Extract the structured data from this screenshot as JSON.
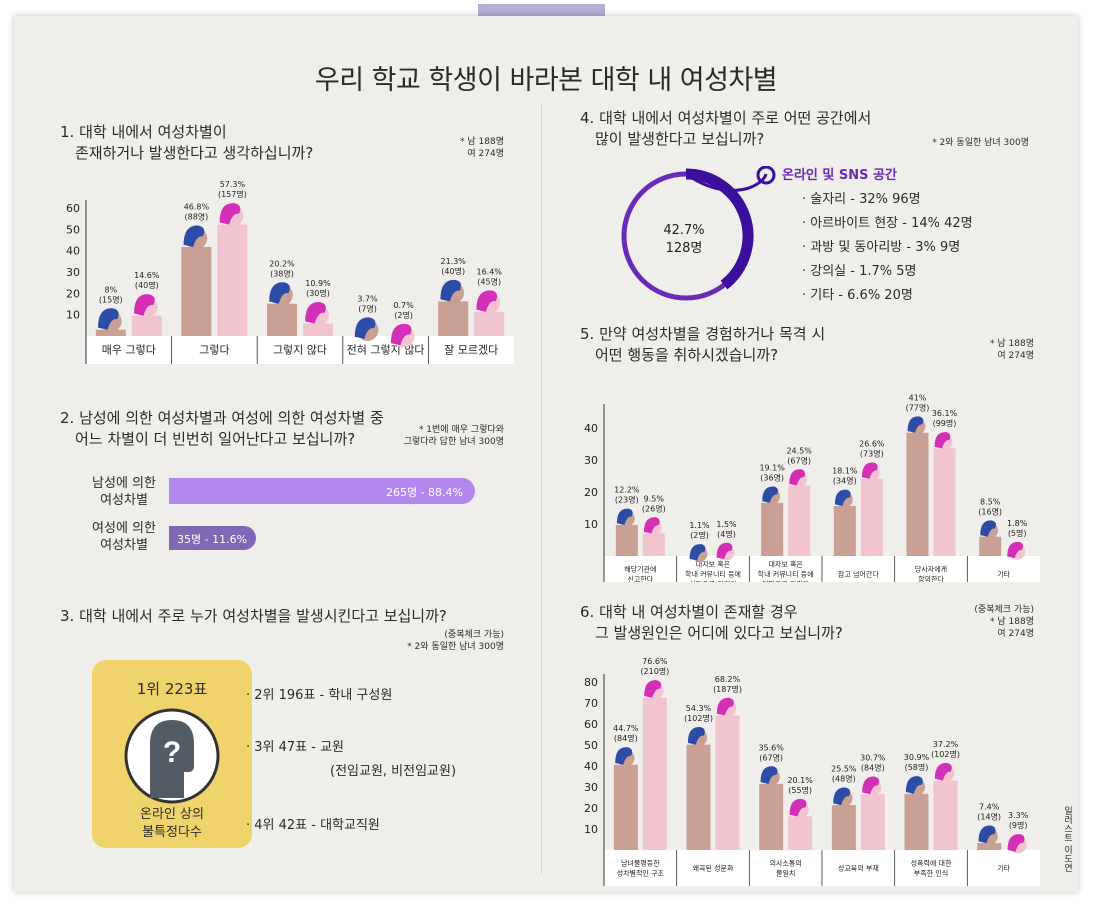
{
  "title": "우리 학교 학생이 바라본 대학 내 여성차별",
  "colors": {
    "male_body": "#c9a093",
    "male_hair": "#2d4ca7",
    "female_body": "#f1c4cf",
    "female_hair": "#d42fb7",
    "purple": "#6a2ab7",
    "hbar_light": "#b487ee",
    "hbar_dark": "#7f69b4",
    "badge": "#f0d36b"
  },
  "q1": {
    "title_l1": "1. 대학 내에서 여성차별이",
    "title_l2": "존재하거나 발생한다고 생각하십니까?",
    "note_l1": "* 남 188명",
    "note_l2": "여 274명"
  },
  "q2": {
    "title_l1": "2. 남성에 의한 여성차별과 여성에 의한 여성차별 중",
    "title_l2": "어느 차별이 더 빈번히 일어난다고 보십니까?",
    "note_l1": "* 1번에 매우 그렇다와",
    "note_l2": "그렇다라 답한 남녀 300명",
    "bar1_label_l1": "남성에 의한",
    "bar1_label_l2": "여성차별",
    "bar1_text": "265명 - 88.4%",
    "bar2_label_l1": "여성에 의한",
    "bar2_label_l2": "여성차별",
    "bar2_text": "35명 - 11.6%"
  },
  "q3": {
    "title": "3. 대학 내에서 주로 누가 여성차별을 발생시킨다고 보십니까?",
    "note_l1": "(중복체크 가능)",
    "note_l2": "* 2와 동일한 남녀 300명",
    "badge_rank": "1위 223표",
    "badge_l1": "온라인 상의",
    "badge_l2": "불특정다수",
    "item2": "· 2위 196표 - 학내 구성원",
    "item3": "· 3위 47표 - 교원",
    "item3_sub": "(전임교원, 비전임교원)",
    "item4": "· 4위 42표 - 대학교직원"
  },
  "q4": {
    "title_l1": "4. 대학 내에서 여성차별이 주로 어떤 공간에서",
    "title_l2": "많이 발생한다고 보십니까?",
    "note": "* 2와 동일한 남녀 300명",
    "center_pct": "42.7%",
    "center_cnt": "128명",
    "main_label": "온라인 및 SNS 공간",
    "items": [
      "· 술자리 - 32% 96명",
      "· 아르바이트 현장 - 14% 42명",
      "· 과방 및 동아리방 - 3% 9명",
      "· 강의실 - 1.7% 5명",
      "· 기타 - 6.6% 20명"
    ]
  },
  "q5": {
    "title_l1": "5. 만약 여성차별을 경험하거나 목격 시",
    "title_l2": "어떤 행동을 취하시겠습니까?",
    "note_l1": "* 남 188명",
    "note_l2": "여 274명"
  },
  "q6": {
    "title_l1": "6. 대학 내 여성차별이 존재할 경우",
    "title_l2": "그 발생원인은 어디에 있다고 보십니까?",
    "note_l0": "(중복체크 가능)",
    "note_l1": "* 남 188명",
    "note_l2": "여 274명"
  },
  "credit": "일러스트 이도연",
  "chart_data": [
    {
      "type": "bar",
      "title": "1. 대학 내에서 여성차별이 존재하거나 발생한다고 생각하십니까?",
      "ylim": [
        0,
        60
      ],
      "yticks": [
        10,
        20,
        30,
        40,
        50,
        60
      ],
      "categories": [
        [
          "매우 그렇다"
        ],
        [
          "그렇다"
        ],
        [
          "그렇지 않다"
        ],
        [
          "전혀 그렇지 않다"
        ],
        [
          "잘 모르겠다"
        ]
      ],
      "series": [
        {
          "name": "남",
          "values": [
            8,
            46.8,
            20.2,
            3.7,
            21.3
          ],
          "labels": [
            [
              "8%",
              "(15명)"
            ],
            [
              "46.8%",
              "(88명)"
            ],
            [
              "20.2%",
              "(38명)"
            ],
            [
              "3.7%",
              "(7명)"
            ],
            [
              "21.3%",
              "(40명)"
            ]
          ]
        },
        {
          "name": "여",
          "values": [
            14.6,
            57.3,
            10.9,
            0.7,
            16.4
          ],
          "labels": [
            [
              "14.6%",
              "(40명)"
            ],
            [
              "57.3%",
              "(157명)"
            ],
            [
              "10.9%",
              "(30명)"
            ],
            [
              "0.7%",
              "(2명)"
            ],
            [
              "16.4%",
              "(45명)"
            ]
          ]
        }
      ]
    },
    {
      "type": "bar",
      "title": "5. 만약 여성차별을 경험하거나 목격 시 어떤 행동을 취하시겠습니까?",
      "ylim": [
        0,
        45
      ],
      "yticks": [
        10,
        20,
        30,
        40
      ],
      "categories": [
        [
          "해당기관에",
          "신고한다"
        ],
        [
          "대자보 혹은",
          "학내 커뮤니티 등에",
          "실명으로 알린다"
        ],
        [
          "대자보 혹은",
          "학내 커뮤니티 등에",
          "익명으로 알린다"
        ],
        [
          "참고 넘어간다"
        ],
        [
          "당사자에게",
          "항의한다"
        ],
        [
          "기타"
        ]
      ],
      "series": [
        {
          "name": "남",
          "values": [
            12.2,
            1.1,
            19.1,
            18.1,
            41,
            8.5
          ],
          "labels": [
            [
              "12.2%",
              "(23명)"
            ],
            [
              "1.1%",
              "(2명)"
            ],
            [
              "19.1%",
              "(36명)"
            ],
            [
              "18.1%",
              "(34명)"
            ],
            [
              "41%",
              "(77명)"
            ],
            [
              "8.5%",
              "(16명)"
            ]
          ]
        },
        {
          "name": "여",
          "values": [
            9.5,
            1.5,
            24.5,
            26.6,
            36.1,
            1.8
          ],
          "labels": [
            [
              "9.5%",
              "(26명)"
            ],
            [
              "1.5%",
              "(4명)"
            ],
            [
              "24.5%",
              "(67명)"
            ],
            [
              "26.6%",
              "(73명)"
            ],
            [
              "36.1%",
              "(99명)"
            ],
            [
              "1.8%",
              "(5명)"
            ]
          ]
        }
      ]
    },
    {
      "type": "bar",
      "title": "6. 대학 내 여성차별이 존재할 경우 그 발생원인은 어디에 있다고 보십니까?",
      "ylim": [
        0,
        80
      ],
      "yticks": [
        10,
        20,
        30,
        40,
        50,
        60,
        70,
        80
      ],
      "categories": [
        [
          "남녀불평등한",
          "성차별적인 구조"
        ],
        [
          "왜곡된 성문화"
        ],
        [
          "의사소통의",
          "불일치"
        ],
        [
          "성교육의 부재"
        ],
        [
          "성폭력에 대한",
          "부족한 인식"
        ],
        [
          "기타"
        ]
      ],
      "series": [
        {
          "name": "남",
          "values": [
            44.7,
            54.3,
            35.6,
            25.5,
            30.9,
            7.4
          ],
          "labels": [
            [
              "44.7%",
              "(84명)"
            ],
            [
              "54.3%",
              "(102명)"
            ],
            [
              "35.6%",
              "(67명)"
            ],
            [
              "25.5%",
              "(48명)"
            ],
            [
              "30.9%",
              "(58명)"
            ],
            [
              "7.4%",
              "(14명)"
            ]
          ]
        },
        {
          "name": "여",
          "values": [
            76.6,
            68.2,
            20.1,
            30.7,
            37.2,
            3.3
          ],
          "labels": [
            [
              "76.6%",
              "(210명)"
            ],
            [
              "68.2%",
              "(187명)"
            ],
            [
              "20.1%",
              "(55명)"
            ],
            [
              "30.7%",
              "(84명)"
            ],
            [
              "37.2%",
              "(102명)"
            ],
            [
              "3.3%",
              "(9명)"
            ]
          ]
        }
      ]
    },
    {
      "type": "bar",
      "title": "2. 남성에 의한 여성차별과 여성에 의한 여성차별 중 어느 차별이 더 빈번히 일어난다고 보십니까?",
      "categories": [
        "남성에 의한 여성차별",
        "여성에 의한 여성차별"
      ],
      "values": [
        88.4,
        11.6
      ]
    },
    {
      "type": "pie",
      "title": "4. 대학 내에서 여성차별이 주로 어떤 공간에서 많이 발생한다고 보십니까?",
      "categories": [
        "온라인 및 SNS 공간",
        "술자리",
        "아르바이트 현장",
        "과방 및 동아리방",
        "강의실",
        "기타"
      ],
      "values": [
        42.7,
        32,
        14,
        3,
        1.7,
        6.6
      ]
    }
  ]
}
